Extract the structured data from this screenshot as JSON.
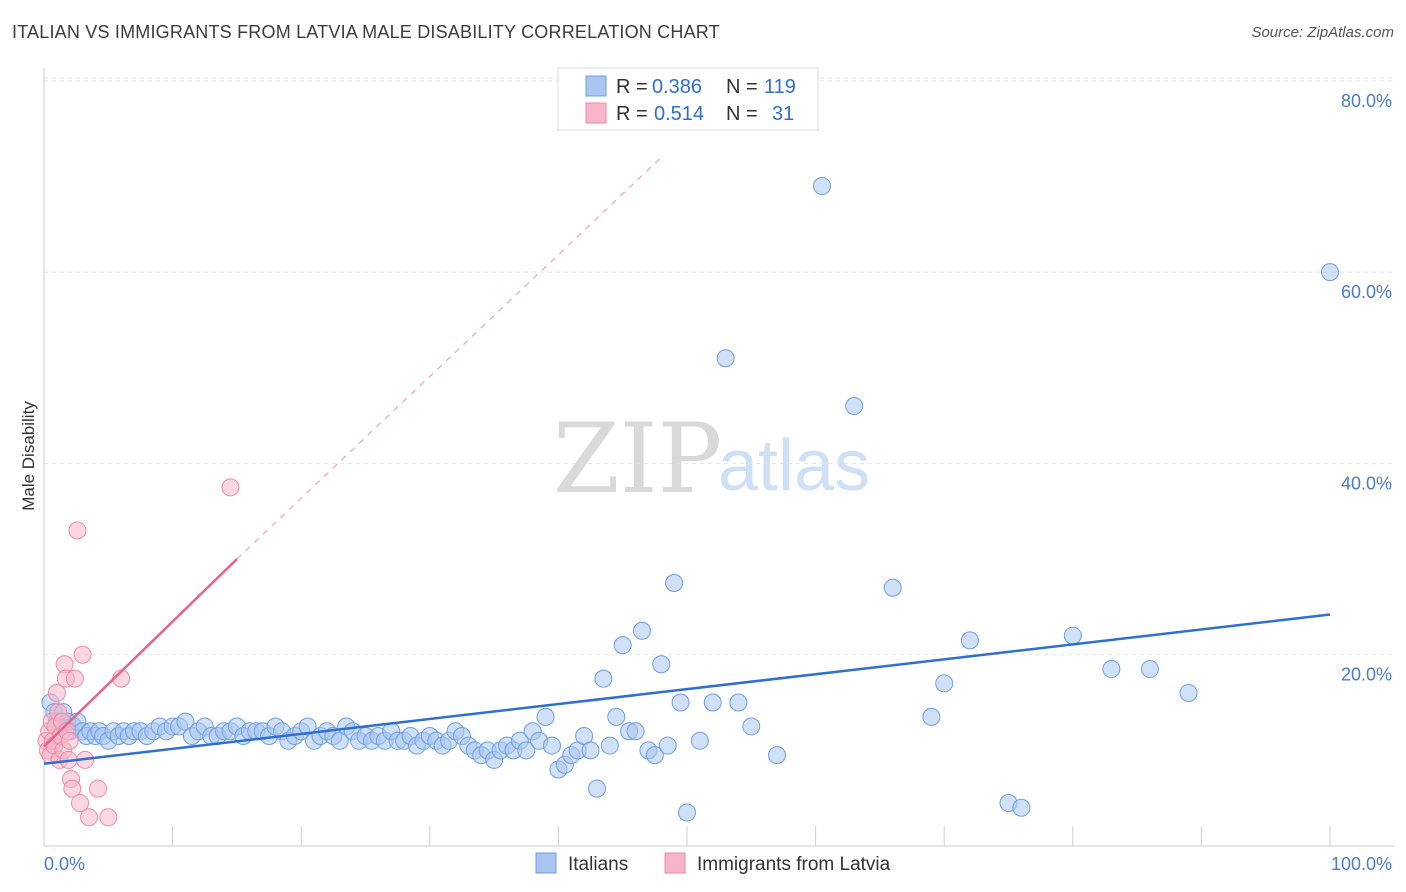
{
  "header": {
    "title": "ITALIAN VS IMMIGRANTS FROM LATVIA MALE DISABILITY CORRELATION CHART",
    "source": "Source: ZipAtlas.com"
  },
  "legend_top": {
    "rows": [
      {
        "r_label": "R =",
        "r_value": "0.386",
        "n_label": "N =",
        "n_value": "119"
      },
      {
        "r_label": "R =",
        "r_value": "0.514",
        "n_label": "N =",
        "n_value": "31"
      }
    ]
  },
  "legend_bottom": {
    "items": [
      "Italians",
      "Immigrants from Latvia"
    ]
  },
  "watermark": {
    "zip": "ZIP",
    "atlas": "atlas"
  },
  "colors": {
    "italians_fill": "#a9c6f0",
    "italians_stroke": "#6f9fe0",
    "italians_line": "#2e6fd3",
    "latvia_fill": "#f7b6c8",
    "latvia_stroke": "#ee8aa8",
    "latvia_line": "#e8628f",
    "grid": "#e2e2e2",
    "tick_text": "#4a7cc9"
  },
  "chart_data": {
    "type": "scatter",
    "title": "ITALIAN VS IMMIGRANTS FROM LATVIA MALE DISABILITY CORRELATION CHART",
    "xlabel": "",
    "ylabel": "Male Disability",
    "xlim": [
      0,
      100
    ],
    "ylim": [
      0,
      85
    ],
    "x_tick_labels": [
      "0.0%",
      "100.0%"
    ],
    "y_ticks": [
      20,
      40,
      60,
      80
    ],
    "y_tick_labels": [
      "20.0%",
      "40.0%",
      "60.0%",
      "80.0%"
    ],
    "grid": true,
    "legend_position": "top-center",
    "series": [
      {
        "name": "Italians",
        "r": 0.386,
        "n": 119,
        "trend": {
          "x": [
            0,
            100
          ],
          "y": [
            8.6,
            24.2
          ]
        },
        "points": [
          [
            0.5,
            15
          ],
          [
            0.8,
            14
          ],
          [
            1.0,
            13
          ],
          [
            1.2,
            12.5
          ],
          [
            1.5,
            14
          ],
          [
            1.8,
            13
          ],
          [
            2.0,
            12
          ],
          [
            2.3,
            12.5
          ],
          [
            2.6,
            13
          ],
          [
            3.0,
            12
          ],
          [
            3.3,
            11.5
          ],
          [
            3.6,
            12
          ],
          [
            4.0,
            11.5
          ],
          [
            4.3,
            12
          ],
          [
            4.6,
            11.5
          ],
          [
            5.0,
            11
          ],
          [
            5.4,
            12
          ],
          [
            5.8,
            11.5
          ],
          [
            6.2,
            12
          ],
          [
            6.6,
            11.5
          ],
          [
            7.0,
            12
          ],
          [
            7.5,
            12
          ],
          [
            8.0,
            11.5
          ],
          [
            8.5,
            12
          ],
          [
            9.0,
            12.5
          ],
          [
            9.5,
            12
          ],
          [
            10.0,
            12.5
          ],
          [
            10.5,
            12.5
          ],
          [
            11.0,
            13
          ],
          [
            11.5,
            11.5
          ],
          [
            12.0,
            12
          ],
          [
            12.5,
            12.5
          ],
          [
            13.0,
            11.5
          ],
          [
            13.5,
            11.5
          ],
          [
            14.0,
            12
          ],
          [
            14.5,
            12
          ],
          [
            15.0,
            12.5
          ],
          [
            15.5,
            11.5
          ],
          [
            16.0,
            12
          ],
          [
            16.5,
            12
          ],
          [
            17.0,
            12
          ],
          [
            17.5,
            11.5
          ],
          [
            18.0,
            12.5
          ],
          [
            18.5,
            12
          ],
          [
            19.0,
            11
          ],
          [
            19.5,
            11.5
          ],
          [
            20.0,
            12
          ],
          [
            20.5,
            12.5
          ],
          [
            21.0,
            11
          ],
          [
            21.5,
            11.5
          ],
          [
            22.0,
            12
          ],
          [
            22.5,
            11.5
          ],
          [
            23.0,
            11
          ],
          [
            23.5,
            12.5
          ],
          [
            24.0,
            12
          ],
          [
            24.5,
            11
          ],
          [
            25.0,
            11.5
          ],
          [
            25.5,
            11
          ],
          [
            26.0,
            11.5
          ],
          [
            26.5,
            11
          ],
          [
            27.0,
            12
          ],
          [
            27.5,
            11
          ],
          [
            28.0,
            11
          ],
          [
            28.5,
            11.5
          ],
          [
            29.0,
            10.5
          ],
          [
            29.5,
            11
          ],
          [
            30.0,
            11.5
          ],
          [
            30.5,
            11
          ],
          [
            31.0,
            10.5
          ],
          [
            31.5,
            11
          ],
          [
            32.0,
            12
          ],
          [
            32.5,
            11.5
          ],
          [
            33.0,
            10.5
          ],
          [
            33.5,
            10
          ],
          [
            34.0,
            9.5
          ],
          [
            34.5,
            10
          ],
          [
            35.0,
            9
          ],
          [
            35.5,
            10
          ],
          [
            36.0,
            10.5
          ],
          [
            36.5,
            10
          ],
          [
            37.0,
            11
          ],
          [
            37.5,
            10
          ],
          [
            38.0,
            12
          ],
          [
            38.5,
            11
          ],
          [
            39.0,
            13.5
          ],
          [
            39.5,
            10.5
          ],
          [
            40.0,
            8
          ],
          [
            40.5,
            8.5
          ],
          [
            41.0,
            9.5
          ],
          [
            41.5,
            10
          ],
          [
            42.0,
            11.5
          ],
          [
            42.5,
            10
          ],
          [
            43.0,
            6
          ],
          [
            43.5,
            17.5
          ],
          [
            44.0,
            10.5
          ],
          [
            44.5,
            13.5
          ],
          [
            45.0,
            21
          ],
          [
            45.5,
            12
          ],
          [
            46.0,
            12
          ],
          [
            46.5,
            22.5
          ],
          [
            47.0,
            10
          ],
          [
            47.5,
            9.5
          ],
          [
            48.0,
            19
          ],
          [
            48.5,
            10.5
          ],
          [
            49.0,
            27.5
          ],
          [
            49.5,
            15
          ],
          [
            50.0,
            3.5
          ],
          [
            51.0,
            11
          ],
          [
            52.0,
            15
          ],
          [
            53.0,
            51
          ],
          [
            54.0,
            15
          ],
          [
            55.0,
            12.5
          ],
          [
            57.0,
            9.5
          ],
          [
            60.5,
            69
          ],
          [
            63.0,
            46
          ],
          [
            66.0,
            27
          ],
          [
            69.0,
            13.5
          ],
          [
            70.0,
            17
          ],
          [
            72.0,
            21.5
          ],
          [
            75.0,
            4.5
          ],
          [
            76.0,
            4
          ],
          [
            80.0,
            22
          ],
          [
            83.0,
            18.5
          ],
          [
            86.0,
            18.5
          ],
          [
            89.0,
            16
          ],
          [
            100.0,
            60
          ]
        ]
      },
      {
        "name": "Immigrants from Latvia",
        "r": 0.514,
        "n": 31,
        "trend": {
          "x": [
            0,
            15
          ],
          "y": [
            10.4,
            30.0
          ]
        },
        "trend_extension": {
          "x": [
            15,
            48
          ],
          "y": [
            30.0,
            72.0
          ]
        },
        "points": [
          [
            0.2,
            11
          ],
          [
            0.3,
            10
          ],
          [
            0.4,
            12
          ],
          [
            0.5,
            9.5
          ],
          [
            0.6,
            13
          ],
          [
            0.7,
            11
          ],
          [
            0.8,
            10.5
          ],
          [
            0.9,
            12.5
          ],
          [
            1.0,
            16
          ],
          [
            1.1,
            14
          ],
          [
            1.2,
            9
          ],
          [
            1.3,
            11.5
          ],
          [
            1.4,
            13
          ],
          [
            1.5,
            10
          ],
          [
            1.6,
            19
          ],
          [
            1.7,
            17.5
          ],
          [
            1.8,
            12
          ],
          [
            1.9,
            9
          ],
          [
            2.0,
            11
          ],
          [
            2.1,
            7
          ],
          [
            2.2,
            6
          ],
          [
            2.4,
            17.5
          ],
          [
            2.6,
            33
          ],
          [
            2.8,
            4.5
          ],
          [
            3.0,
            20
          ],
          [
            3.2,
            9
          ],
          [
            3.5,
            3
          ],
          [
            4.2,
            6
          ],
          [
            5.0,
            3
          ],
          [
            6.0,
            17.5
          ],
          [
            14.5,
            37.5
          ]
        ]
      }
    ]
  }
}
